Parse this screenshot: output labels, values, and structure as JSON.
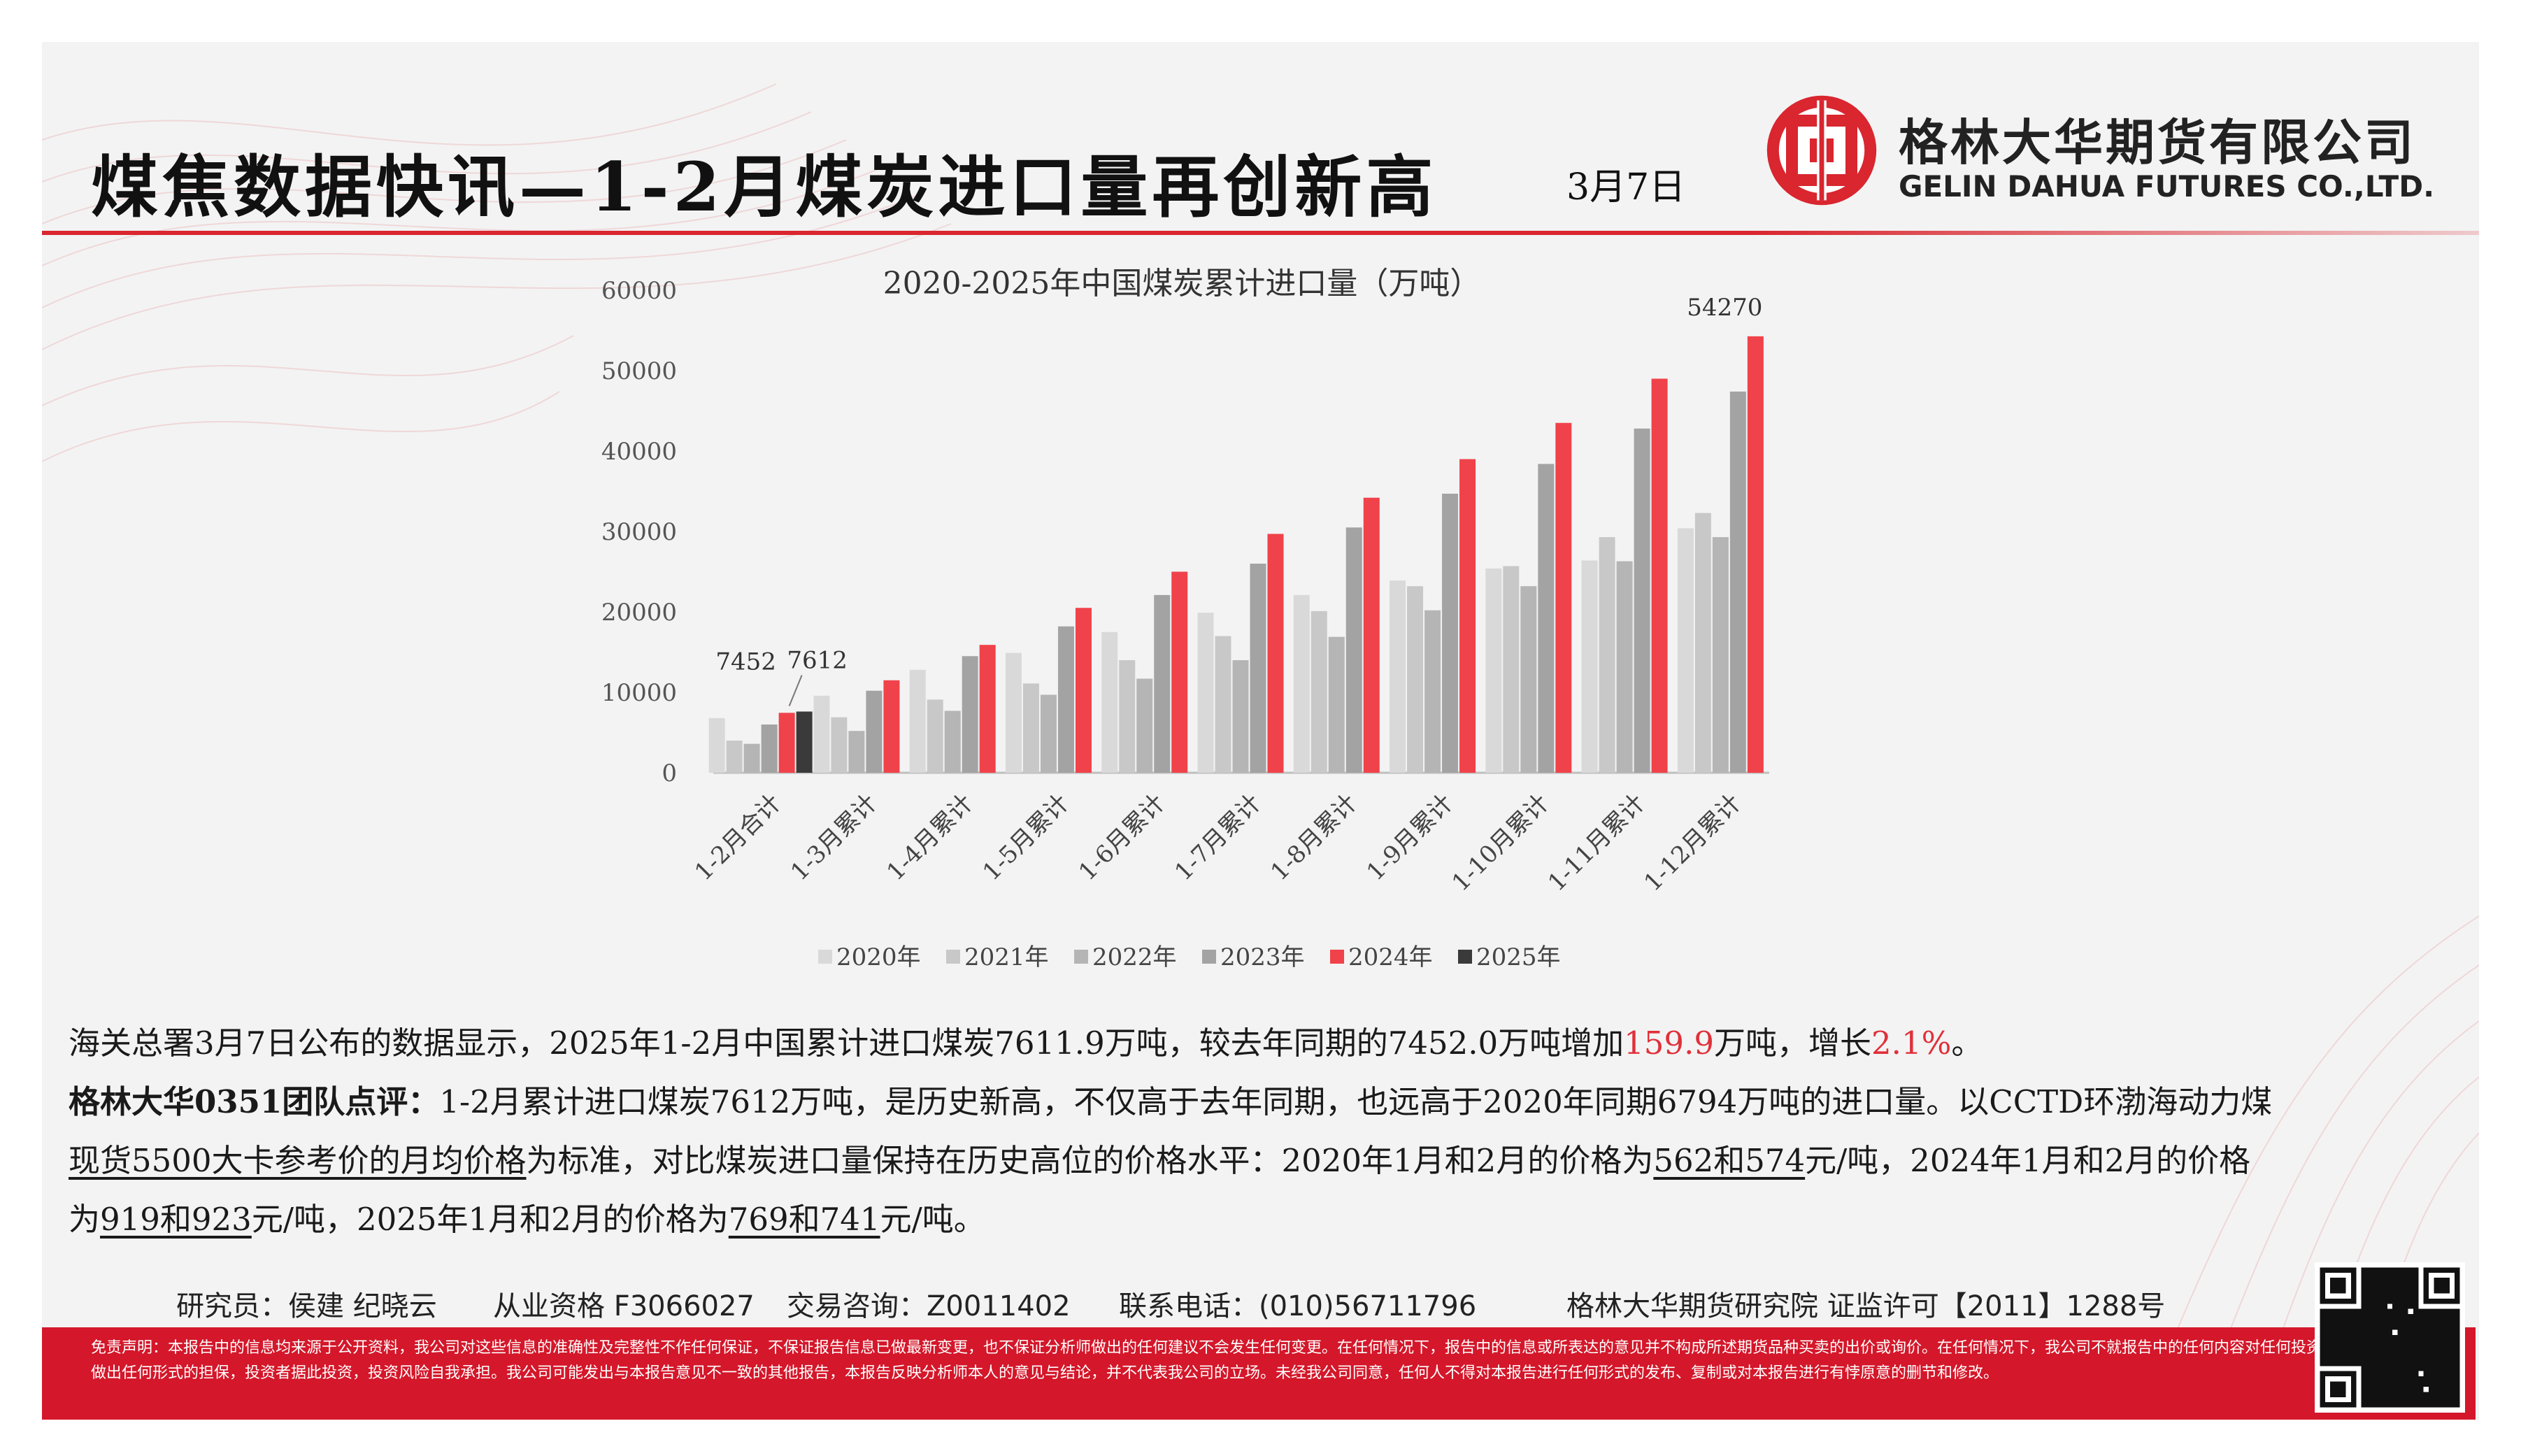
{
  "header": {
    "title": "煤焦数据快讯—1-2月煤炭进口量再创新高",
    "date": "3月7日",
    "logo_cn": "格林大华期货有限公司",
    "logo_en": "GELIN DAHUA FUTURES CO.,LTD."
  },
  "colors": {
    "accent_red": "#d9262f",
    "bar_2020": "#d9d9d9",
    "bar_2021": "#c8c8c8",
    "bar_2022": "#b5b5b5",
    "bar_2023": "#a3a3a3",
    "bar_2024": "#f0424a",
    "bar_2025": "#3a3a3a"
  },
  "chart_data": {
    "type": "bar",
    "title": "2020-2025年中国煤炭累计进口量（万吨）",
    "categories": [
      "1-2月合计",
      "1-3月累计",
      "1-4月累计",
      "1-5月累计",
      "1-6月累计",
      "1-7月累计",
      "1-8月累计",
      "1-9月累计",
      "1-10月累计",
      "1-11月累计",
      "1-12月累计"
    ],
    "series": [
      {
        "name": "2020年",
        "values": [
          6794,
          9580,
          12800,
          14900,
          17500,
          19900,
          22100,
          23900,
          25400,
          26400,
          30400
        ]
      },
      {
        "name": "2021年",
        "values": [
          4000,
          6900,
          9100,
          11100,
          14000,
          17000,
          20100,
          23200,
          25700,
          29300,
          32300
        ]
      },
      {
        "name": "2022年",
        "values": [
          3600,
          5200,
          7700,
          9700,
          11700,
          14000,
          16900,
          20200,
          23200,
          26300,
          29300
        ]
      },
      {
        "name": "2023年",
        "values": [
          6000,
          10200,
          14500,
          18200,
          22100,
          26000,
          30500,
          34700,
          38400,
          42800,
          47400
        ]
      },
      {
        "name": "2024年",
        "values": [
          7452,
          11500,
          15900,
          20500,
          25000,
          29700,
          34200,
          39000,
          43500,
          49000,
          54270
        ]
      },
      {
        "name": "2025年",
        "values": [
          7612,
          null,
          null,
          null,
          null,
          null,
          null,
          null,
          null,
          null,
          null
        ]
      }
    ],
    "yticks": [
      "60000",
      "50000",
      "40000",
      "30000",
      "20000",
      "10000",
      "0"
    ],
    "ylim": [
      0,
      60000
    ],
    "data_labels": [
      "7452",
      "7612",
      "54270"
    ],
    "legend_position": "bottom"
  },
  "body": {
    "p1_a": "海关总署3月7日公布的数据显示，2025年1-2月中国累计进口煤炭7611.9万吨，较去年同期的7452.0万吨增加",
    "p1_red1": "159.9",
    "p1_b": "万吨，增长",
    "p1_red2": "2.1%",
    "p1_c": "。",
    "p2_bold": "格林大华0351团队点评：",
    "p2_a": "1-2月累计进口煤炭7612万吨，是历史新高，不仅高于去年同期，也远高于2020年同期6794万吨的进口量。以CCTD环渤海动力煤",
    "p2_ul1": "现货5500大卡参考价的月均价格",
    "p2_b": "为标准，对比煤炭进口量保持在历史高位的价格水平：2020年1月和2月的价格为",
    "p2_ul2": "562和574",
    "p2_c": "元/吨，2024年1月和2月的价格",
    "p2_d": "为",
    "p2_ul3": "919和923",
    "p2_e": "元/吨，2025年1月和2月的价格为",
    "p2_ul4": "769和741",
    "p2_f": "元/吨。"
  },
  "contact": {
    "analyst": "研究员：侯建 纪晓云",
    "license": "从业资格 F3066027",
    "consult": "交易咨询：Z0011402",
    "phone": "联系电话：(010)56711796",
    "institute": "格林大华期货研究院 证监许可【2011】1288号"
  },
  "disclaimer": "免责声明：本报告中的信息均来源于公开资料，我公司对这些信息的准确性及完整性不作任何保证，不保证报告信息已做最新变更，也不保证分析师做出的任何建议不会发生任何变更。在任何情况下，报告中的信息或所表达的意见并不构成所述期货品种买卖的出价或询价。在任何情况下，我公司不就报告中的任何内容对任何投资做出任何形式的担保，投资者据此投资，投资风险自我承担。我公司可能发出与本报告意见不一致的其他报告，本报告反映分析师本人的意见与结论，并不代表我公司的立场。未经我公司同意，任何人不得对本报告进行任何形式的发布、复制或对本报告进行有悖原意的删节和修改。"
}
